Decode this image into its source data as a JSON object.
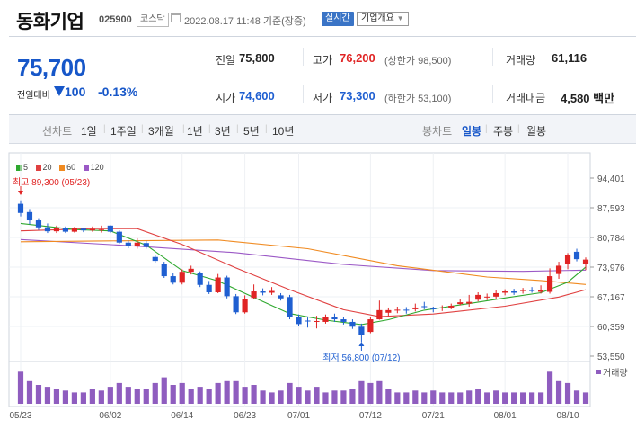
{
  "header": {
    "company_name": "동화기업",
    "stock_code": "025900",
    "market": "코스닥",
    "date_text": "2022.08.17 11:48 기준(장중)",
    "realtime_label": "실시간",
    "company_info_label": "기업개요"
  },
  "summary": {
    "current_price": "75,700",
    "change_label": "전일대비",
    "change_value": "100",
    "change_rate": "-0.13%",
    "prev_close_label": "전일",
    "prev_close": "75,800",
    "high_label": "고가",
    "high": "76,200",
    "upper_limit": "(상한가 98,500)",
    "volume_label": "거래량",
    "volume": "61,116",
    "open_label": "시가",
    "open": "74,600",
    "low_label": "저가",
    "low": "73,300",
    "lower_limit": "(하한가 53,100)",
    "amount_label": "거래대금",
    "amount": "4,580 백만"
  },
  "period_tabs": {
    "line_label": "선차트",
    "line_options": [
      "1일",
      "1주일",
      "3개월",
      "1년",
      "3년",
      "5년",
      "10년"
    ],
    "candle_label": "봉차트",
    "candle_options": [
      "일봉",
      "주봉",
      "월봉"
    ],
    "active_candle": "일봉"
  },
  "legend": [
    {
      "label": "5",
      "color": "#2ea82e"
    },
    {
      "label": "20",
      "color": "#e04040"
    },
    {
      "label": "60",
      "color": "#f08a20"
    },
    {
      "label": "120",
      "color": "#9b59c6"
    }
  ],
  "colors": {
    "up": "#e02424",
    "down": "#1f5fd1",
    "accent": "#1757c9",
    "volume": "#8f5dbf"
  },
  "chart_data": {
    "type": "candlestick",
    "ylim": [
      53550,
      94401
    ],
    "ytick_labels": [
      "94,401",
      "87,593",
      "80,784",
      "73,976",
      "67,167",
      "60,359",
      "53,550"
    ],
    "ytick_values": [
      94401,
      87593,
      80784,
      73976,
      67167,
      60359,
      53550
    ],
    "xtick_labels": [
      "05/23",
      "06/02",
      "06/14",
      "06/23",
      "07/01",
      "07/12",
      "07/21",
      "08/01",
      "08/10"
    ],
    "xtick_index": [
      0,
      10,
      18,
      25,
      31,
      39,
      46,
      54,
      61
    ],
    "max_annotation": "최고 89,300 (05/23)",
    "min_annotation": "최저 56,800 (07/12)",
    "volume_label": "거래량",
    "candles": [
      {
        "o": 88500,
        "c": 86400,
        "h": 89300,
        "l": 85600,
        "v": 0.85
      },
      {
        "o": 86600,
        "c": 84700,
        "h": 87300,
        "l": 83800,
        "v": 0.6
      },
      {
        "o": 84700,
        "c": 83100,
        "h": 85200,
        "l": 82500,
        "v": 0.5
      },
      {
        "o": 83100,
        "c": 82200,
        "h": 84000,
        "l": 81800,
        "v": 0.45
      },
      {
        "o": 82200,
        "c": 82900,
        "h": 83500,
        "l": 81800,
        "v": 0.4
      },
      {
        "o": 82900,
        "c": 82100,
        "h": 83300,
        "l": 81800,
        "v": 0.35
      },
      {
        "o": 82100,
        "c": 82900,
        "h": 83200,
        "l": 81900,
        "v": 0.3
      },
      {
        "o": 82800,
        "c": 82400,
        "h": 83000,
        "l": 82000,
        "v": 0.3
      },
      {
        "o": 82400,
        "c": 82700,
        "h": 83300,
        "l": 82100,
        "v": 0.4
      },
      {
        "o": 82600,
        "c": 82600,
        "h": 83500,
        "l": 81900,
        "v": 0.35
      },
      {
        "o": 83500,
        "c": 82100,
        "h": 83600,
        "l": 81800,
        "v": 0.45
      },
      {
        "o": 82100,
        "c": 79600,
        "h": 82400,
        "l": 79300,
        "v": 0.55
      },
      {
        "o": 79600,
        "c": 78800,
        "h": 80100,
        "l": 78300,
        "v": 0.45
      },
      {
        "o": 78800,
        "c": 79600,
        "h": 80600,
        "l": 78200,
        "v": 0.4
      },
      {
        "o": 79500,
        "c": 78600,
        "h": 80000,
        "l": 78200,
        "v": 0.4
      },
      {
        "o": 76300,
        "c": 75400,
        "h": 76800,
        "l": 75000,
        "v": 0.55
      },
      {
        "o": 74800,
        "c": 71900,
        "h": 75200,
        "l": 71500,
        "v": 0.7
      },
      {
        "o": 71900,
        "c": 70400,
        "h": 72700,
        "l": 70000,
        "v": 0.5
      },
      {
        "o": 70400,
        "c": 72900,
        "h": 73500,
        "l": 70000,
        "v": 0.55
      },
      {
        "o": 72900,
        "c": 73600,
        "h": 74300,
        "l": 72300,
        "v": 0.4
      },
      {
        "o": 72700,
        "c": 69900,
        "h": 73000,
        "l": 69400,
        "v": 0.45
      },
      {
        "o": 69900,
        "c": 68200,
        "h": 70800,
        "l": 67800,
        "v": 0.4
      },
      {
        "o": 68200,
        "c": 71600,
        "h": 72400,
        "l": 68000,
        "v": 0.55
      },
      {
        "o": 71600,
        "c": 67300,
        "h": 72000,
        "l": 66800,
        "v": 0.6
      },
      {
        "o": 67300,
        "c": 63600,
        "h": 67800,
        "l": 63200,
        "v": 0.6
      },
      {
        "o": 63600,
        "c": 66600,
        "h": 67500,
        "l": 63300,
        "v": 0.45
      },
      {
        "o": 66900,
        "c": 68400,
        "h": 70000,
        "l": 66700,
        "v": 0.5
      },
      {
        "o": 68400,
        "c": 68100,
        "h": 69100,
        "l": 67500,
        "v": 0.35
      },
      {
        "o": 68100,
        "c": 68500,
        "h": 69400,
        "l": 67600,
        "v": 0.3
      },
      {
        "o": 67500,
        "c": 66800,
        "h": 68000,
        "l": 66300,
        "v": 0.35
      },
      {
        "o": 67100,
        "c": 62500,
        "h": 67600,
        "l": 62000,
        "v": 0.55
      },
      {
        "o": 62500,
        "c": 60900,
        "h": 63100,
        "l": 60400,
        "v": 0.45
      },
      {
        "o": 61700,
        "c": 61500,
        "h": 62400,
        "l": 60100,
        "v": 0.35
      },
      {
        "o": 61500,
        "c": 61600,
        "h": 62800,
        "l": 59900,
        "v": 0.45
      },
      {
        "o": 61400,
        "c": 62600,
        "h": 63100,
        "l": 61000,
        "v": 0.3
      },
      {
        "o": 62600,
        "c": 62000,
        "h": 63300,
        "l": 61400,
        "v": 0.35
      },
      {
        "o": 62000,
        "c": 61400,
        "h": 62600,
        "l": 60800,
        "v": 0.35
      },
      {
        "o": 61400,
        "c": 60300,
        "h": 62000,
        "l": 59800,
        "v": 0.4
      },
      {
        "o": 60300,
        "c": 58500,
        "h": 61000,
        "l": 56800,
        "v": 0.6
      },
      {
        "o": 59100,
        "c": 62000,
        "h": 62600,
        "l": 58800,
        "v": 0.55
      },
      {
        "o": 62000,
        "c": 64100,
        "h": 66300,
        "l": 61900,
        "v": 0.6
      },
      {
        "o": 63500,
        "c": 64100,
        "h": 64700,
        "l": 62800,
        "v": 0.4
      },
      {
        "o": 64100,
        "c": 64200,
        "h": 64900,
        "l": 63400,
        "v": 0.3
      },
      {
        "o": 64200,
        "c": 64000,
        "h": 64800,
        "l": 63300,
        "v": 0.3
      },
      {
        "o": 64300,
        "c": 64700,
        "h": 65600,
        "l": 63800,
        "v": 0.35
      },
      {
        "o": 65000,
        "c": 64800,
        "h": 66000,
        "l": 64300,
        "v": 0.3
      },
      {
        "o": 64500,
        "c": 64300,
        "h": 64900,
        "l": 63600,
        "v": 0.35
      },
      {
        "o": 64500,
        "c": 64700,
        "h": 65200,
        "l": 63900,
        "v": 0.3
      },
      {
        "o": 64700,
        "c": 65100,
        "h": 65600,
        "l": 64300,
        "v": 0.3
      },
      {
        "o": 65500,
        "c": 65900,
        "h": 66600,
        "l": 65200,
        "v": 0.3
      },
      {
        "o": 65600,
        "c": 66000,
        "h": 67600,
        "l": 64900,
        "v": 0.35
      },
      {
        "o": 66500,
        "c": 67600,
        "h": 68200,
        "l": 66100,
        "v": 0.4
      },
      {
        "o": 67100,
        "c": 67200,
        "h": 67900,
        "l": 66400,
        "v": 0.3
      },
      {
        "o": 67200,
        "c": 68000,
        "h": 68800,
        "l": 66700,
        "v": 0.35
      },
      {
        "o": 68100,
        "c": 68400,
        "h": 68900,
        "l": 67500,
        "v": 0.3
      },
      {
        "o": 68400,
        "c": 68100,
        "h": 69000,
        "l": 67600,
        "v": 0.3
      },
      {
        "o": 68500,
        "c": 68700,
        "h": 69200,
        "l": 67900,
        "v": 0.3
      },
      {
        "o": 68700,
        "c": 68600,
        "h": 69400,
        "l": 68100,
        "v": 0.3
      },
      {
        "o": 68300,
        "c": 68700,
        "h": 69800,
        "l": 67900,
        "v": 0.3
      },
      {
        "o": 68300,
        "c": 71900,
        "h": 73700,
        "l": 67900,
        "v": 0.85
      },
      {
        "o": 72400,
        "c": 74300,
        "h": 75200,
        "l": 71300,
        "v": 0.6
      },
      {
        "o": 74600,
        "c": 76800,
        "h": 77200,
        "l": 73500,
        "v": 0.55
      },
      {
        "o": 77500,
        "c": 75800,
        "h": 78200,
        "l": 75300,
        "v": 0.35
      },
      {
        "o": 74600,
        "c": 75700,
        "h": 76200,
        "l": 73300,
        "v": 0.3
      }
    ],
    "ma5": [
      [
        0,
        84000
      ],
      [
        6,
        82600
      ],
      [
        10,
        82300
      ],
      [
        14,
        79000
      ],
      [
        18,
        73200
      ],
      [
        22,
        70800
      ],
      [
        26,
        67000
      ],
      [
        30,
        63300
      ],
      [
        34,
        61800
      ],
      [
        38,
        60800
      ],
      [
        41,
        61900
      ],
      [
        45,
        64100
      ],
      [
        50,
        65600
      ],
      [
        54,
        66900
      ],
      [
        58,
        68100
      ],
      [
        61,
        70500
      ],
      [
        63,
        74000
      ]
    ],
    "ma20": [
      [
        0,
        82300
      ],
      [
        8,
        82800
      ],
      [
        13,
        82800
      ],
      [
        18,
        79200
      ],
      [
        24,
        73800
      ],
      [
        30,
        68800
      ],
      [
        36,
        64200
      ],
      [
        40,
        62600
      ],
      [
        46,
        63200
      ],
      [
        54,
        65000
      ],
      [
        60,
        67100
      ],
      [
        63,
        68800
      ]
    ],
    "ma60": [
      [
        0,
        79800
      ],
      [
        10,
        80000
      ],
      [
        22,
        80200
      ],
      [
        32,
        78200
      ],
      [
        42,
        74300
      ],
      [
        52,
        71700
      ],
      [
        58,
        70900
      ],
      [
        63,
        70000
      ]
    ],
    "ma120": [
      [
        0,
        80300
      ],
      [
        12,
        78900
      ],
      [
        24,
        77300
      ],
      [
        36,
        74600
      ],
      [
        46,
        73200
      ],
      [
        56,
        73000
      ],
      [
        63,
        73300
      ]
    ]
  }
}
